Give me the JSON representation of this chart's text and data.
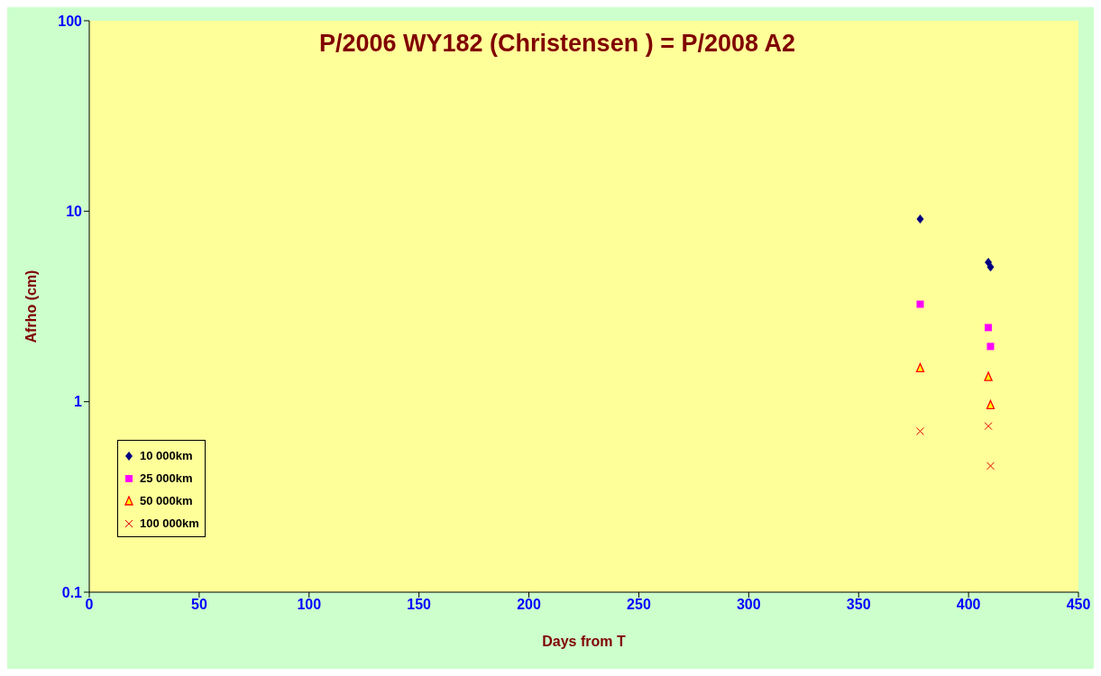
{
  "chart_data": {
    "type": "scatter",
    "title": "P/2006 WY182 (Christensen ) = P/2008 A2",
    "xlabel": "Days from T",
    "ylabel": "Afrho (cm)",
    "log": "y",
    "grid": false,
    "legend": "bottom left",
    "xlim": [
      0,
      450
    ],
    "xticks": [
      0,
      50,
      100,
      150,
      200,
      250,
      300,
      350,
      400,
      450
    ],
    "ylim": [
      0.1,
      100
    ],
    "yticks": [
      0.1,
      1,
      10,
      100
    ],
    "series": [
      {
        "name": "10 000km",
        "color": "#000080",
        "marker": "diamond",
        "x": [
          378,
          409,
          410
        ],
        "values": [
          9.1,
          5.4,
          5.1
        ]
      },
      {
        "name": "25 000km",
        "color": "#ff00ff",
        "marker": "square",
        "x": [
          378,
          409,
          410
        ],
        "values": [
          3.25,
          2.45,
          1.95
        ]
      },
      {
        "name": "50 000km",
        "color": "#ff0000",
        "marker": "triangle",
        "x": [
          378,
          409,
          410
        ],
        "values": [
          1.5,
          1.35,
          0.96
        ]
      },
      {
        "name": "100 000km",
        "color": "#e00000",
        "marker": "cross",
        "x": [
          378,
          409,
          410
        ],
        "values": [
          0.7,
          0.745,
          0.46
        ]
      }
    ]
  }
}
